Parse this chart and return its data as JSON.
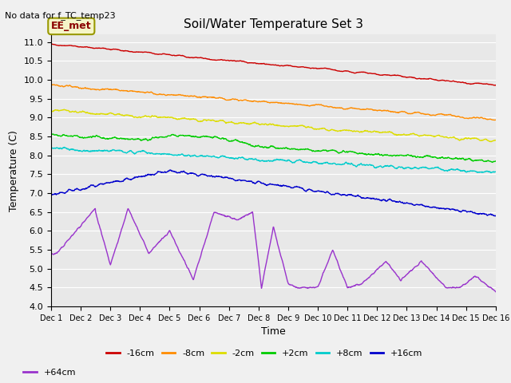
{
  "title": "Soil/Water Temperature Set 3",
  "xlabel": "Time",
  "ylabel": "Temperature (C)",
  "note": "No data for f_TC_temp23",
  "legend_label": "EE_met",
  "xlim": [
    0,
    15
  ],
  "ylim": [
    4.0,
    11.2
  ],
  "xtick_labels": [
    "Dec 1",
    "Dec 2",
    "Dec 3",
    "Dec 4",
    "Dec 5",
    "Dec 6",
    "Dec 7",
    "Dec 8",
    "Dec 9",
    "Dec 10",
    "Dec 11",
    "Dec 12",
    "Dec 13",
    "Dec 14",
    "Dec 15",
    "Dec 16"
  ],
  "colors": {
    "-16cm": "#cc0000",
    "-8cm": "#ff8c00",
    "-2cm": "#dddd00",
    "+2cm": "#00cc00",
    "+8cm": "#00cccc",
    "+16cm": "#0000cc",
    "+64cm": "#9933cc"
  },
  "background_color": "#e8e8e8",
  "grid_color": "#ffffff",
  "fig_facecolor": "#f0f0f0"
}
